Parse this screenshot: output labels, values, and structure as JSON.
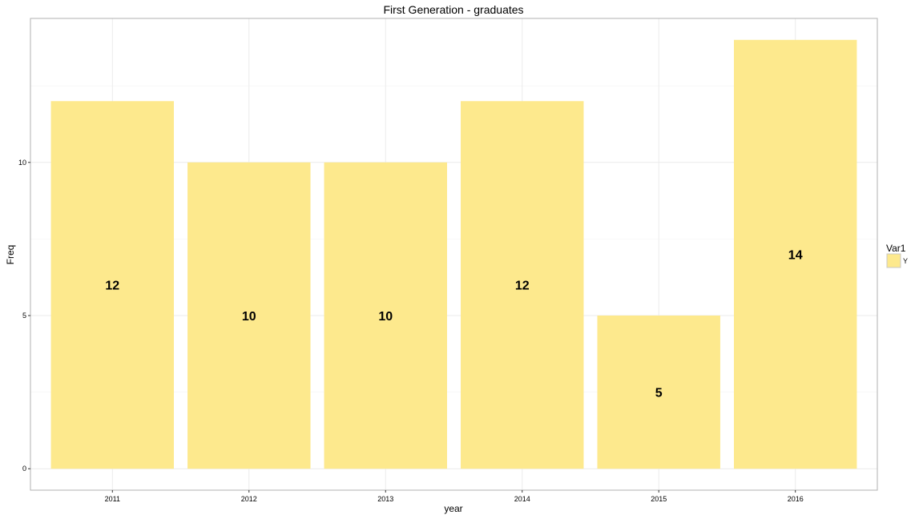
{
  "chart_data": {
    "type": "bar",
    "title": "First Generation - graduates",
    "xlabel": "year",
    "ylabel": "Freq",
    "categories": [
      "2011",
      "2012",
      "2013",
      "2014",
      "2015",
      "2016"
    ],
    "series": [
      {
        "name": "Y",
        "values": [
          12,
          10,
          10,
          12,
          5,
          14
        ],
        "color": "#fde98d"
      }
    ],
    "data_labels": [
      "12",
      "10",
      "10",
      "12",
      "5",
      "14"
    ],
    "y_ticks": [
      0,
      5,
      10
    ],
    "y_tick_labels": [
      "0",
      "5",
      "10"
    ],
    "ylim": [
      -0.7,
      14.7
    ],
    "grid": true,
    "legend": {
      "title": "Var1",
      "position": "right",
      "entries": [
        "Y"
      ]
    }
  }
}
